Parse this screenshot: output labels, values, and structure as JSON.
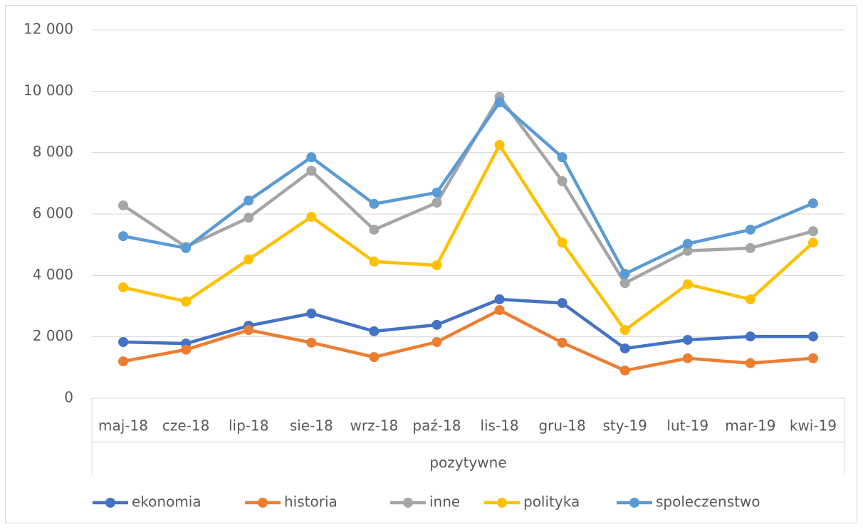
{
  "chart_data": {
    "type": "line",
    "categories": [
      "maj-18",
      "cze-18",
      "lip-18",
      "sie-18",
      "wrz-18",
      "paź-18",
      "lis-18",
      "gru-18",
      "sty-19",
      "lut-19",
      "mar-19",
      "kwi-19"
    ],
    "category_group": "pozytywne",
    "series": [
      {
        "name": "ekonomia",
        "color": "#4472c4",
        "values": [
          1830,
          1780,
          2360,
          2760,
          2180,
          2390,
          3220,
          3100,
          1620,
          1900,
          2010,
          2010
        ]
      },
      {
        "name": "historia",
        "color": "#ed7d31",
        "values": [
          1200,
          1580,
          2220,
          1810,
          1340,
          1830,
          2870,
          1810,
          900,
          1300,
          1140,
          1300
        ]
      },
      {
        "name": "inne",
        "color": "#a5a5a5",
        "values": [
          6280,
          4930,
          5880,
          7410,
          5490,
          6370,
          9820,
          7070,
          3750,
          4800,
          4890,
          5440
        ]
      },
      {
        "name": "polityka",
        "color": "#ffc000",
        "values": [
          3610,
          3150,
          4520,
          5910,
          4450,
          4330,
          8250,
          5070,
          2220,
          3710,
          3220,
          5070
        ]
      },
      {
        "name": "spoleczenstwo",
        "color": "#5b9bd5",
        "values": [
          5280,
          4890,
          6440,
          7850,
          6330,
          6700,
          9640,
          7850,
          4050,
          5030,
          5490,
          6350
        ]
      }
    ],
    "ylim": [
      0,
      12000
    ],
    "yticks": [
      0,
      {
        "value": 2000,
        "label": "2 000"
      },
      {
        "value": 4000,
        "label": "4 000"
      },
      {
        "value": 6000,
        "label": "6 000"
      },
      {
        "value": 8000,
        "label": "8 000"
      },
      {
        "value": 10000,
        "label": "10 000"
      },
      {
        "value": 12000,
        "label": "12 000"
      }
    ],
    "grid": true,
    "legend": "bottom"
  }
}
